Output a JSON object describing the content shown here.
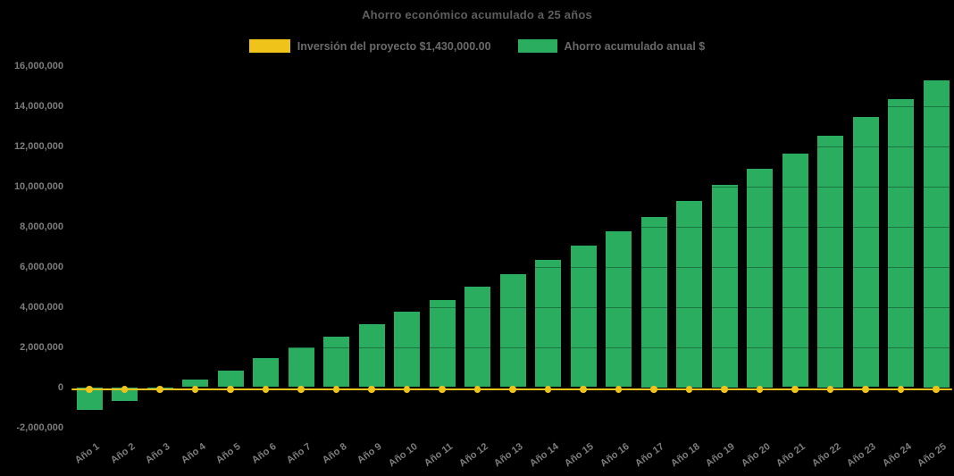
{
  "chart_data": {
    "type": "bar",
    "title": "Ahorro económico acumulado a 25 años",
    "legend_position": "top",
    "background_color": "#000000",
    "text_color": "#7D7D7D",
    "grid": "horizontal-faint-over-bars",
    "categories": [
      "Año 1",
      "Año 2",
      "Año 3",
      "Año 4",
      "Año 5",
      "Año 6",
      "Año 7",
      "Año 8",
      "Año 9",
      "Año 10",
      "Año 11",
      "Año 12",
      "Año 13",
      "Año 14",
      "Año 15",
      "Año 16",
      "Año 17",
      "Año 18",
      "Año 19",
      "Año 20",
      "Año 21",
      "Año 22",
      "Año 23",
      "Año 24",
      "Año 25"
    ],
    "bar_series": {
      "name": "Ahorro acumulado anual $",
      "color": "#2BAD60",
      "values": [
        -1130000,
        -660000,
        -150000,
        370000,
        840000,
        1430000,
        1970000,
        2490000,
        3140000,
        3740000,
        4320000,
        4980000,
        5640000,
        6320000,
        7030000,
        7740000,
        8450000,
        9250000,
        10050000,
        10850000,
        11620000,
        12500000,
        13430000,
        14320000,
        15250000
      ]
    },
    "line_series": {
      "name": "Inversión del proyecto $1,430,000.00",
      "color": "#EFC319",
      "nominal_value": 1430000,
      "plotted_value": -110000
    },
    "ylim": [
      -2000000,
      16000000
    ],
    "ytick_step": 2000000,
    "yticks": [
      -2000000,
      0,
      2000000,
      4000000,
      6000000,
      8000000,
      10000000,
      12000000,
      14000000,
      16000000
    ],
    "ytick_labels": [
      "-2,000,000",
      "0",
      "2,000,000",
      "4,000,000",
      "6,000,000",
      "8,000,000",
      "10,000,000",
      "12,000,000",
      "14,000,000",
      "16,000,000"
    ]
  }
}
